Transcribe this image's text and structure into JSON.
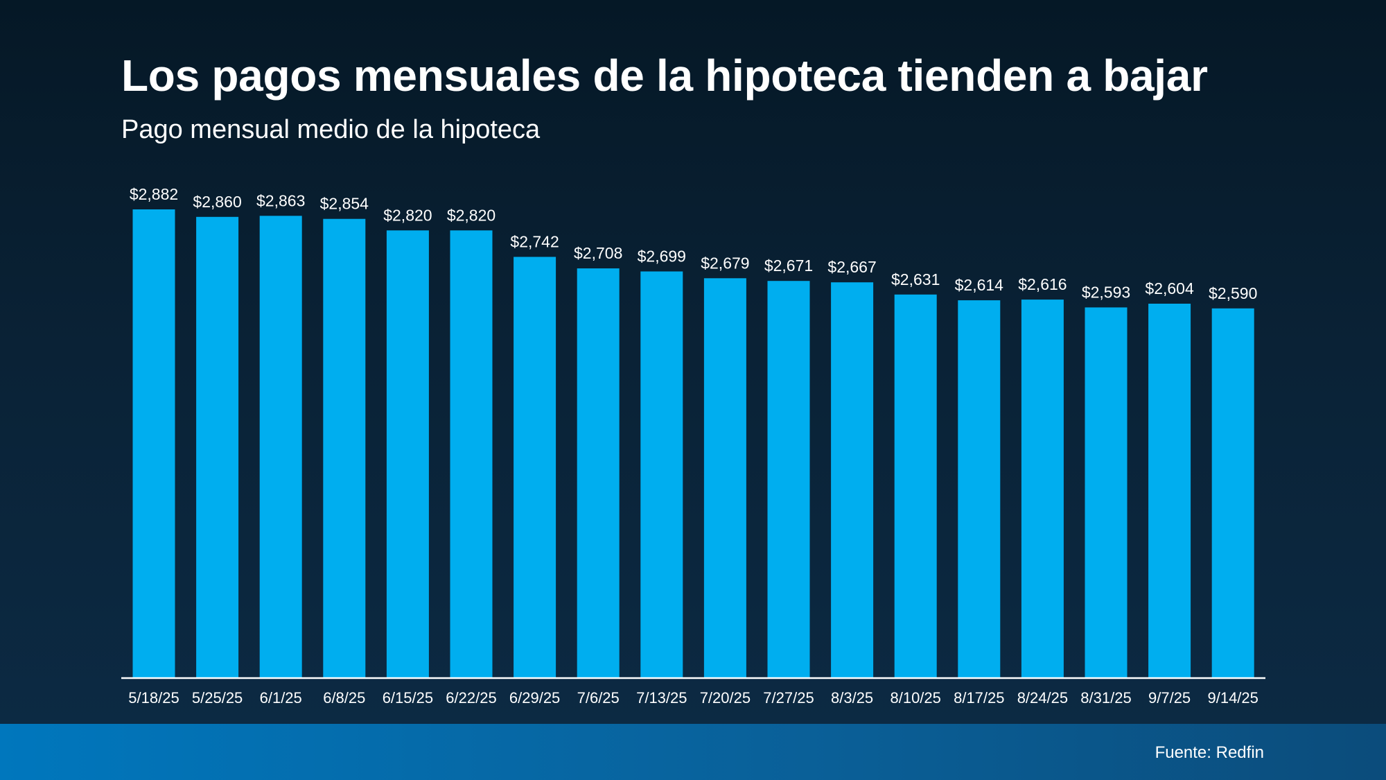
{
  "title": "Los pagos mensuales de la hipoteca tienden a bajar",
  "subtitle": "Pago mensual medio de la hipoteca",
  "source": "Fuente: Redfin",
  "colors": {
    "bar": "#00aeef",
    "axis": "#ffffff",
    "background": "#071c2c",
    "footer": "#0070b5"
  },
  "chart_data": {
    "type": "bar",
    "categories": [
      "5/18/25",
      "5/25/25",
      "6/1/25",
      "6/8/25",
      "6/15/25",
      "6/22/25",
      "6/29/25",
      "7/6/25",
      "7/13/25",
      "7/20/25",
      "7/27/25",
      "8/3/25",
      "8/10/25",
      "8/17/25",
      "8/24/25",
      "8/31/25",
      "9/7/25",
      "9/14/25"
    ],
    "values": [
      2882,
      2860,
      2863,
      2854,
      2820,
      2820,
      2742,
      2708,
      2699,
      2679,
      2671,
      2667,
      2631,
      2614,
      2616,
      2593,
      2604,
      2590
    ],
    "value_labels": [
      "$2,882",
      "$2,860",
      "$2,863",
      "$2,854",
      "$2,820",
      "$2,820",
      "$2,742",
      "$2,708",
      "$2,699",
      "$2,679",
      "$2,671",
      "$2,667",
      "$2,631",
      "$2,614",
      "$2,616",
      "$2,593",
      "$2,604",
      "$2,590"
    ],
    "title": "Los pagos mensuales de la hipoteca tienden a bajar",
    "subtitle": "Pago mensual medio de la hipoteca",
    "xlabel": "",
    "ylabel": "",
    "ylim": [
      1500,
      2882
    ],
    "grid": false,
    "legend": "none"
  }
}
